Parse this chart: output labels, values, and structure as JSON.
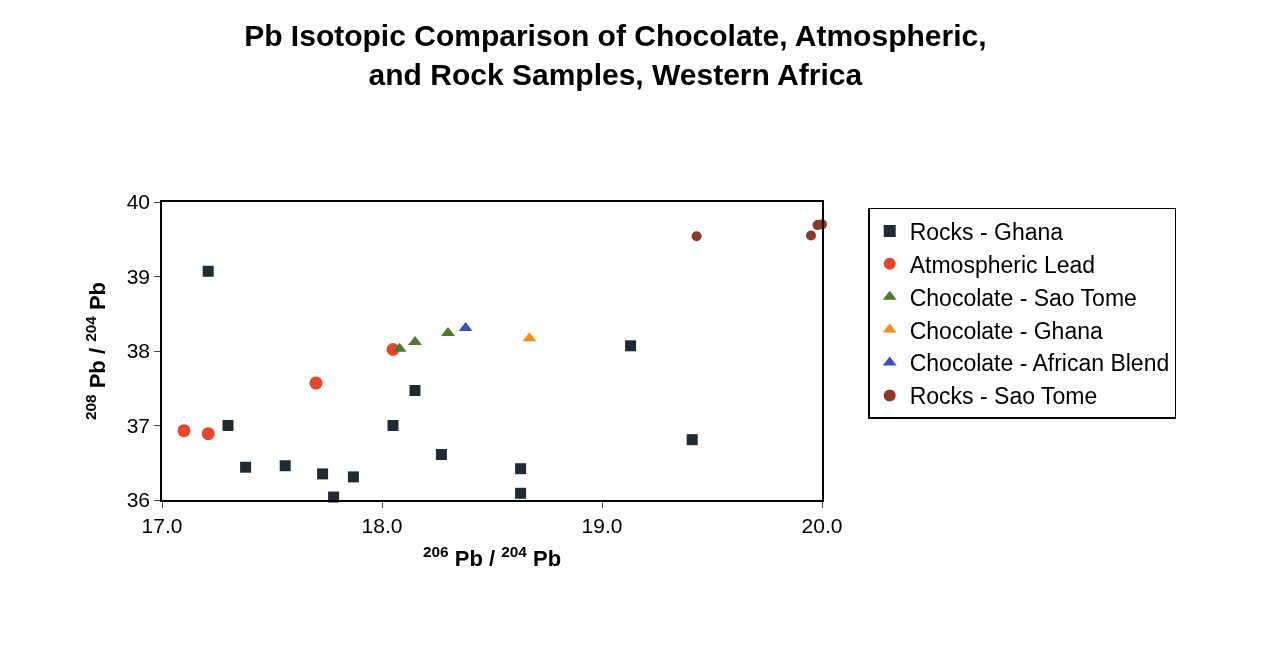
{
  "chart_data": {
    "type": "scatter",
    "title": "Pb Isotopic Comparison of Chocolate, Atmospheric,\nand Rock Samples, Western Africa",
    "xlabel": "$^{206}$ Pb / $^{204}$ Pb",
    "ylabel": "$^{208}$ Pb / $^{204}$ Pb",
    "xlim": [
      17.0,
      20.0
    ],
    "xticks": [
      {
        "value": 17,
        "label": "17.0"
      },
      {
        "value": 18,
        "label": "18.0"
      },
      {
        "value": 19,
        "label": "19.0"
      },
      {
        "value": 20,
        "label": "20.0"
      }
    ],
    "ylim": [
      36,
      40
    ],
    "yticks": [
      36,
      37,
      38,
      39,
      40
    ],
    "legend": "right",
    "series": [
      {
        "name": "Rocks - Ghana",
        "color": "#1f2a33",
        "marker": "square",
        "x": [
          17.21,
          17.3,
          17.38,
          17.56,
          17.73,
          17.78,
          17.87,
          18.05,
          18.15,
          18.27,
          18.63,
          18.63,
          19.13,
          19.41
        ],
        "values": [
          39.07,
          37.0,
          36.44,
          36.46,
          36.35,
          36.04,
          36.31,
          37.0,
          37.47,
          36.61,
          36.42,
          36.09,
          38.07,
          36.81
        ]
      },
      {
        "name": "Atmospheric Lead",
        "color": "#e8452c",
        "marker": "circle",
        "x": [
          17.1,
          17.21,
          17.7,
          18.05
        ],
        "values": [
          36.93,
          36.89,
          37.57,
          38.02
        ]
      },
      {
        "name": "Chocolate - Sao Tome",
        "color": "#4a7a2a",
        "marker": "triangle",
        "x": [
          18.08,
          18.15,
          18.3
        ],
        "values": [
          38.03,
          38.12,
          38.24
        ]
      },
      {
        "name": "Chocolate - Ghana",
        "color": "#f58a1f",
        "marker": "triangle",
        "x": [
          18.67
        ],
        "values": [
          38.17
        ]
      },
      {
        "name": "Chocolate - African Blend",
        "color": "#3a4fc0",
        "marker": "triangle",
        "x": [
          18.38
        ],
        "values": [
          38.31
        ]
      },
      {
        "name": "Rocks - Sao Tome",
        "color": "#8b3a2a",
        "marker": "circle",
        "x": [
          19.43,
          19.95,
          19.98,
          20.0
        ],
        "values": [
          39.54,
          39.55,
          39.69,
          39.7
        ]
      }
    ]
  }
}
